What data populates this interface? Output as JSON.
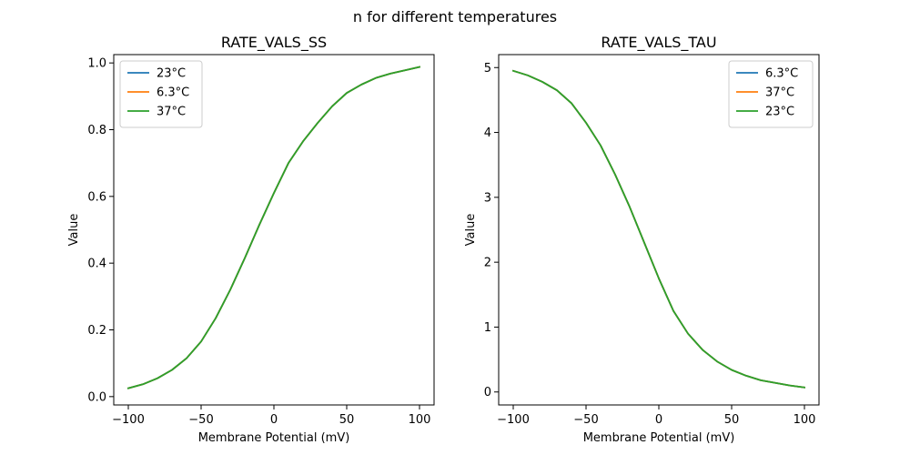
{
  "figure": {
    "suptitle": "n for different temperatures"
  },
  "chart_data": [
    {
      "type": "line",
      "title": "RATE_VALS_SS",
      "xlabel": "Membrane Potential (mV)",
      "ylabel": "Value",
      "xlim": [
        -110,
        110
      ],
      "ylim": [
        -0.025,
        1.025
      ],
      "xticks": [
        -100,
        -50,
        0,
        50,
        100
      ],
      "xtick_labels": [
        "−100",
        "−50",
        "0",
        "50",
        "100"
      ],
      "yticks": [
        0.0,
        0.2,
        0.4,
        0.6,
        0.8,
        1.0
      ],
      "ytick_labels": [
        "0.0",
        "0.2",
        "0.4",
        "0.6",
        "0.8",
        "1.0"
      ],
      "grid": false,
      "legend": "upper-left",
      "x": [
        -100,
        -90,
        -80,
        -70,
        -60,
        -50,
        -40,
        -30,
        -20,
        -10,
        0,
        10,
        20,
        30,
        40,
        50,
        60,
        70,
        80,
        90,
        100
      ],
      "series": [
        {
          "name": "23°C",
          "color": "#1f77b4",
          "values": [
            0.025,
            0.037,
            0.055,
            0.08,
            0.115,
            0.165,
            0.235,
            0.32,
            0.415,
            0.515,
            0.61,
            0.7,
            0.765,
            0.82,
            0.87,
            0.91,
            0.935,
            0.955,
            0.968,
            0.978,
            0.988
          ]
        },
        {
          "name": "6.3°C",
          "color": "#ff7f0e",
          "values": [
            0.025,
            0.037,
            0.055,
            0.08,
            0.115,
            0.165,
            0.235,
            0.32,
            0.415,
            0.515,
            0.61,
            0.7,
            0.765,
            0.82,
            0.87,
            0.91,
            0.935,
            0.955,
            0.968,
            0.978,
            0.988
          ]
        },
        {
          "name": "37°C",
          "color": "#2ca02c",
          "values": [
            0.025,
            0.037,
            0.055,
            0.08,
            0.115,
            0.165,
            0.235,
            0.32,
            0.415,
            0.515,
            0.61,
            0.7,
            0.765,
            0.82,
            0.87,
            0.91,
            0.935,
            0.955,
            0.968,
            0.978,
            0.988
          ]
        }
      ]
    },
    {
      "type": "line",
      "title": "RATE_VALS_TAU",
      "xlabel": "Membrane Potential (mV)",
      "ylabel": "Value",
      "xlim": [
        -110,
        110
      ],
      "ylim": [
        -0.2,
        5.2
      ],
      "xticks": [
        -100,
        -50,
        0,
        50,
        100
      ],
      "xtick_labels": [
        "−100",
        "−50",
        "0",
        "50",
        "100"
      ],
      "yticks": [
        0,
        1,
        2,
        3,
        4,
        5
      ],
      "ytick_labels": [
        "0",
        "1",
        "2",
        "3",
        "4",
        "5"
      ],
      "grid": false,
      "legend": "upper-right",
      "x": [
        -100,
        -90,
        -80,
        -70,
        -60,
        -50,
        -40,
        -30,
        -20,
        -10,
        0,
        10,
        20,
        30,
        40,
        50,
        60,
        70,
        80,
        90,
        100
      ],
      "series": [
        {
          "name": "6.3°C",
          "color": "#1f77b4",
          "values": [
            4.95,
            4.88,
            4.78,
            4.65,
            4.45,
            4.15,
            3.8,
            3.35,
            2.85,
            2.3,
            1.75,
            1.25,
            0.9,
            0.65,
            0.47,
            0.34,
            0.25,
            0.18,
            0.14,
            0.1,
            0.07
          ]
        },
        {
          "name": "37°C",
          "color": "#ff7f0e",
          "values": [
            4.95,
            4.88,
            4.78,
            4.65,
            4.45,
            4.15,
            3.8,
            3.35,
            2.85,
            2.3,
            1.75,
            1.25,
            0.9,
            0.65,
            0.47,
            0.34,
            0.25,
            0.18,
            0.14,
            0.1,
            0.07
          ]
        },
        {
          "name": "23°C",
          "color": "#2ca02c",
          "values": [
            4.95,
            4.88,
            4.78,
            4.65,
            4.45,
            4.15,
            3.8,
            3.35,
            2.85,
            2.3,
            1.75,
            1.25,
            0.9,
            0.65,
            0.47,
            0.34,
            0.25,
            0.18,
            0.14,
            0.1,
            0.07
          ]
        }
      ]
    }
  ]
}
